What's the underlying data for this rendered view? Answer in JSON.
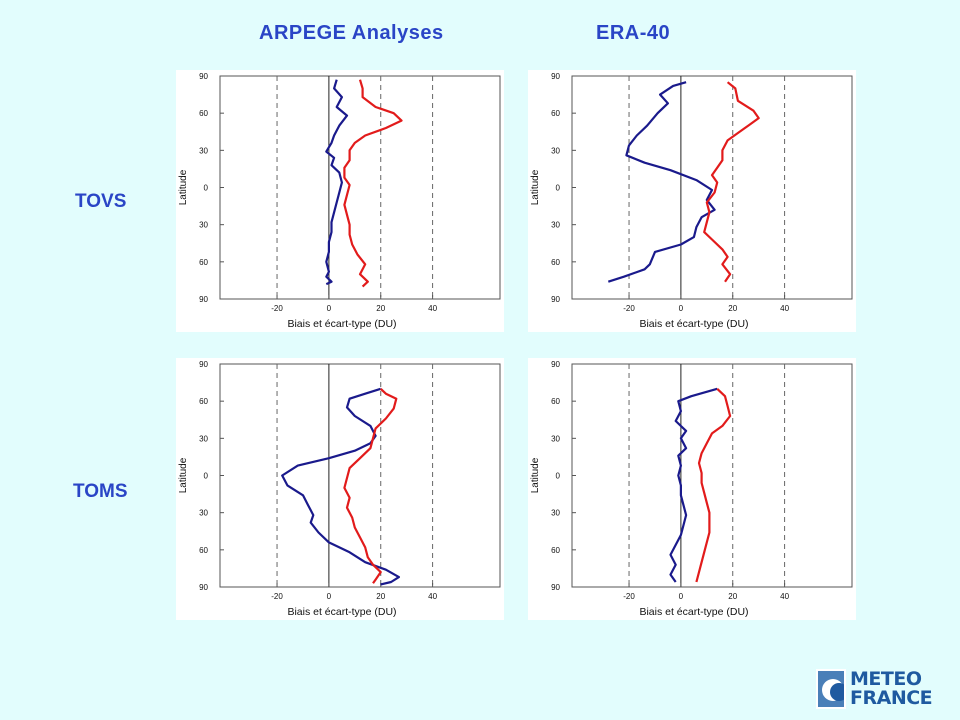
{
  "header": {
    "col1": "ARPEGE Analyses",
    "col2": "ERA-40"
  },
  "rows": {
    "row1": "TOVS",
    "row2": "TOMS"
  },
  "logo": {
    "line1": "METEO",
    "line2": "FRANCE",
    "color": "#1f5aa0"
  },
  "colors": {
    "background": "#e2fdfd",
    "bias": "#1a1a8c",
    "stddev": "#e21b1b"
  },
  "chart_data": [
    {
      "type": "line",
      "panel": "TOVS / ARPEGE Analyses",
      "xlabel": "Biais et écart-type (DU)",
      "ylabel": "Latitude",
      "xlim": [
        -42,
        66
      ],
      "ylim": [
        -90,
        90
      ],
      "xticks": [
        -20,
        0,
        20,
        40
      ],
      "yticks": [
        90,
        60,
        30,
        0,
        30,
        60,
        90
      ],
      "dashed_x": [
        -20,
        20,
        40
      ],
      "solid_x": [
        0
      ],
      "series": [
        {
          "color": "#1a1a8c",
          "points": [
            [
              3,
              87
            ],
            [
              2,
              80
            ],
            [
              5,
              73
            ],
            [
              3,
              65
            ],
            [
              7,
              58
            ],
            [
              4,
              50
            ],
            [
              2,
              42
            ],
            [
              1,
              36
            ],
            [
              -1,
              29
            ],
            [
              2,
              24
            ],
            [
              1,
              18
            ],
            [
              4,
              12
            ],
            [
              5,
              4
            ],
            [
              4,
              -4
            ],
            [
              3,
              -12
            ],
            [
              2,
              -20
            ],
            [
              1,
              -28
            ],
            [
              1,
              -36
            ],
            [
              0,
              -44
            ],
            [
              0,
              -52
            ],
            [
              -1,
              -60
            ],
            [
              0,
              -68
            ],
            [
              -1,
              -72
            ],
            [
              1,
              -76
            ],
            [
              -1,
              -78
            ]
          ]
        },
        {
          "color": "#e21b1b",
          "points": [
            [
              12,
              87
            ],
            [
              13,
              80
            ],
            [
              13,
              73
            ],
            [
              18,
              65
            ],
            [
              25,
              60
            ],
            [
              28,
              54
            ],
            [
              22,
              48
            ],
            [
              14,
              42
            ],
            [
              10,
              36
            ],
            [
              8,
              30
            ],
            [
              8,
              22
            ],
            [
              6,
              16
            ],
            [
              6,
              8
            ],
            [
              8,
              2
            ],
            [
              7,
              -6
            ],
            [
              6,
              -14
            ],
            [
              7,
              -22
            ],
            [
              8,
              -30
            ],
            [
              8,
              -38
            ],
            [
              9,
              -46
            ],
            [
              11,
              -54
            ],
            [
              14,
              -62
            ],
            [
              12,
              -70
            ],
            [
              15,
              -76
            ],
            [
              13,
              -80
            ]
          ]
        }
      ]
    },
    {
      "type": "line",
      "panel": "TOVS / ERA-40",
      "xlabel": "Biais et écart-type (DU)",
      "ylabel": "Latitude",
      "xlim": [
        -42,
        66
      ],
      "ylim": [
        -90,
        90
      ],
      "xticks": [
        -20,
        0,
        20,
        40
      ],
      "yticks": [
        90,
        60,
        30,
        0,
        30,
        60,
        90
      ],
      "dashed_x": [
        -20,
        20,
        40
      ],
      "solid_x": [
        0
      ],
      "series": [
        {
          "color": "#1a1a8c",
          "points": [
            [
              2,
              85
            ],
            [
              -3,
              82
            ],
            [
              -8,
              75
            ],
            [
              -5,
              68
            ],
            [
              -9,
              60
            ],
            [
              -13,
              50
            ],
            [
              -17,
              42
            ],
            [
              -20,
              34
            ],
            [
              -21,
              26
            ],
            [
              -14,
              20
            ],
            [
              -4,
              14
            ],
            [
              6,
              6
            ],
            [
              12,
              -2
            ],
            [
              10,
              -10
            ],
            [
              13,
              -18
            ],
            [
              8,
              -24
            ],
            [
              6,
              -32
            ],
            [
              5,
              -40
            ],
            [
              0,
              -46
            ],
            [
              -10,
              -52
            ],
            [
              -12,
              -62
            ],
            [
              -14,
              -66
            ],
            [
              -22,
              -72
            ],
            [
              -28,
              -76
            ]
          ]
        },
        {
          "color": "#e21b1b",
          "points": [
            [
              18,
              85
            ],
            [
              21,
              80
            ],
            [
              22,
              70
            ],
            [
              28,
              62
            ],
            [
              30,
              56
            ],
            [
              26,
              50
            ],
            [
              22,
              44
            ],
            [
              18,
              38
            ],
            [
              16,
              30
            ],
            [
              16,
              22
            ],
            [
              14,
              16
            ],
            [
              12,
              10
            ],
            [
              14,
              4
            ],
            [
              13,
              -4
            ],
            [
              10,
              -12
            ],
            [
              11,
              -20
            ],
            [
              10,
              -28
            ],
            [
              9,
              -36
            ],
            [
              12,
              -42
            ],
            [
              16,
              -50
            ],
            [
              18,
              -56
            ],
            [
              16,
              -62
            ],
            [
              19,
              -70
            ],
            [
              17,
              -76
            ]
          ]
        }
      ]
    },
    {
      "type": "line",
      "panel": "TOMS / ARPEGE Analyses",
      "xlabel": "Biais et écart-type (DU)",
      "ylabel": "Latitude",
      "xlim": [
        -42,
        66
      ],
      "ylim": [
        -90,
        90
      ],
      "xticks": [
        -20,
        0,
        20,
        40
      ],
      "yticks": [
        90,
        60,
        30,
        0,
        30,
        60,
        90
      ],
      "dashed_x": [
        -20,
        20,
        40
      ],
      "solid_x": [
        0
      ],
      "series": [
        {
          "color": "#1a1a8c",
          "points": [
            [
              20,
              70
            ],
            [
              14,
              66
            ],
            [
              8,
              62
            ],
            [
              7,
              55
            ],
            [
              10,
              48
            ],
            [
              16,
              40
            ],
            [
              18,
              32
            ],
            [
              16,
              26
            ],
            [
              10,
              20
            ],
            [
              0,
              14
            ],
            [
              -12,
              8
            ],
            [
              -18,
              0
            ],
            [
              -16,
              -8
            ],
            [
              -10,
              -16
            ],
            [
              -8,
              -24
            ],
            [
              -6,
              -32
            ],
            [
              -7,
              -38
            ],
            [
              -4,
              -46
            ],
            [
              0,
              -54
            ],
            [
              8,
              -62
            ],
            [
              14,
              -70
            ],
            [
              22,
              -76
            ],
            [
              27,
              -82
            ],
            [
              24,
              -86
            ],
            [
              20,
              -88
            ]
          ]
        },
        {
          "color": "#e21b1b",
          "points": [
            [
              20,
              70
            ],
            [
              22,
              66
            ],
            [
              26,
              62
            ],
            [
              25,
              54
            ],
            [
              22,
              46
            ],
            [
              18,
              38
            ],
            [
              17,
              30
            ],
            [
              16,
              22
            ],
            [
              12,
              14
            ],
            [
              8,
              6
            ],
            [
              7,
              -2
            ],
            [
              6,
              -10
            ],
            [
              8,
              -18
            ],
            [
              7,
              -26
            ],
            [
              9,
              -34
            ],
            [
              10,
              -42
            ],
            [
              12,
              -50
            ],
            [
              14,
              -58
            ],
            [
              15,
              -66
            ],
            [
              17,
              -72
            ],
            [
              20,
              -78
            ],
            [
              18,
              -84
            ],
            [
              17,
              -87
            ]
          ]
        }
      ]
    },
    {
      "type": "line",
      "panel": "TOMS / ERA-40",
      "xlabel": "Biais et écart-type (DU)",
      "ylabel": "Latitude",
      "xlim": [
        -42,
        66
      ],
      "ylim": [
        -90,
        90
      ],
      "xticks": [
        -20,
        0,
        20,
        40
      ],
      "yticks": [
        90,
        60,
        30,
        0,
        30,
        60,
        90
      ],
      "dashed_x": [
        -20,
        20,
        40
      ],
      "solid_x": [
        0
      ],
      "series": [
        {
          "color": "#1a1a8c",
          "points": [
            [
              14,
              70
            ],
            [
              4,
              64
            ],
            [
              -1,
              60
            ],
            [
              0,
              52
            ],
            [
              -2,
              44
            ],
            [
              2,
              36
            ],
            [
              0,
              30
            ],
            [
              2,
              22
            ],
            [
              -1,
              16
            ],
            [
              0,
              8
            ],
            [
              -1,
              0
            ],
            [
              0,
              -8
            ],
            [
              0,
              -16
            ],
            [
              1,
              -24
            ],
            [
              2,
              -32
            ],
            [
              1,
              -40
            ],
            [
              0,
              -48
            ],
            [
              -2,
              -56
            ],
            [
              -4,
              -64
            ],
            [
              -2,
              -72
            ],
            [
              -4,
              -80
            ],
            [
              -2,
              -86
            ]
          ]
        },
        {
          "color": "#e21b1b",
          "points": [
            [
              14,
              70
            ],
            [
              17,
              64
            ],
            [
              18,
              56
            ],
            [
              19,
              48
            ],
            [
              16,
              40
            ],
            [
              12,
              34
            ],
            [
              10,
              26
            ],
            [
              8,
              18
            ],
            [
              7,
              10
            ],
            [
              8,
              2
            ],
            [
              8,
              -6
            ],
            [
              9,
              -14
            ],
            [
              10,
              -22
            ],
            [
              11,
              -30
            ],
            [
              11,
              -38
            ],
            [
              11,
              -46
            ],
            [
              10,
              -54
            ],
            [
              9,
              -62
            ],
            [
              8,
              -70
            ],
            [
              7,
              -78
            ],
            [
              6,
              -86
            ]
          ]
        }
      ]
    }
  ]
}
